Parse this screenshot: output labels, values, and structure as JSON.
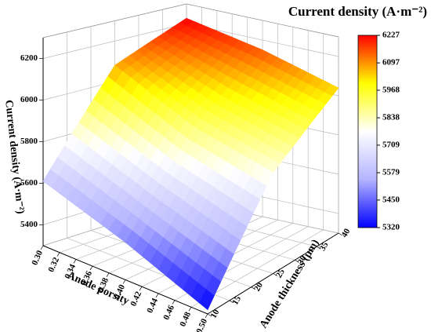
{
  "chart_data": {
    "type": "surface",
    "title": "Current density (A·m⁻²)",
    "zlabel": "Current density (A·m⁻²)",
    "xlabel": "Anode porsity",
    "ylabel": "Anode thickness (μm)",
    "x": [
      0.3,
      0.4,
      0.5
    ],
    "y": [
      10,
      25,
      40
    ],
    "z": [
      [
        5610,
        6080,
        6227
      ],
      [
        5480,
        5900,
        6150
      ],
      [
        5320,
        5800,
        6040
      ]
    ],
    "xlim": [
      0.3,
      0.5
    ],
    "xticks": [
      {
        "value": 0.3,
        "label": "0.30"
      },
      0.32,
      0.34,
      0.36,
      0.38,
      {
        "value": 0.4,
        "label": "0.40"
      },
      0.42,
      0.44,
      0.46,
      0.48,
      {
        "value": 0.5,
        "label": "0.50"
      }
    ],
    "ylim": [
      10,
      40
    ],
    "yticks": [
      10,
      15,
      20,
      25,
      30,
      35,
      40
    ],
    "zlim": [
      5300,
      6300
    ],
    "zticks": [
      5400,
      5600,
      5800,
      6000,
      6200
    ],
    "colormap": [
      "#0000ff",
      "#b4b4ff",
      "#ffffff",
      "#ffff00",
      "#ff0000"
    ],
    "colorbar_lim": [
      5320,
      6227
    ],
    "colorbar_ticks": [
      5320,
      5450,
      5579,
      5709,
      5838,
      5968,
      6097,
      6227
    ],
    "grid": true
  }
}
